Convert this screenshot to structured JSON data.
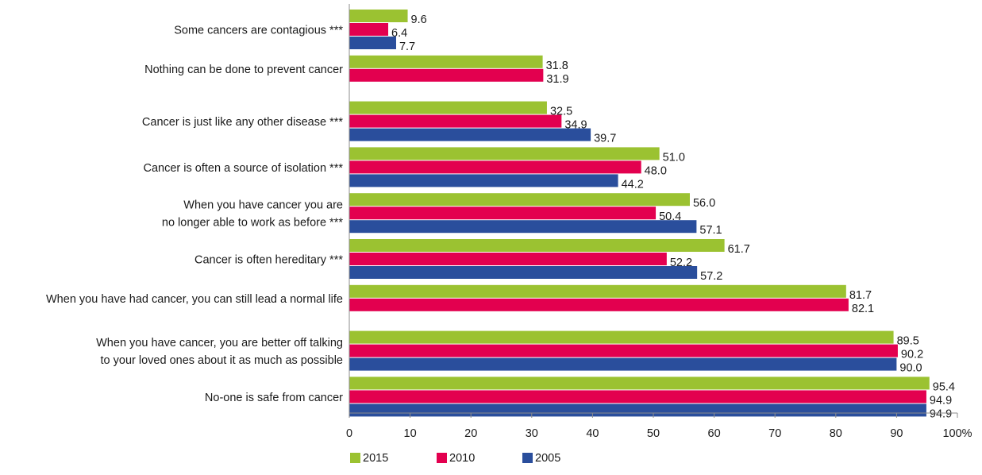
{
  "chart_data": {
    "type": "bar",
    "orientation": "horizontal",
    "title": "",
    "xlabel": "",
    "ylabel": "",
    "xlim": [
      0,
      100
    ],
    "x_ticks": [
      "0",
      "10",
      "20",
      "30",
      "40",
      "50",
      "60",
      "70",
      "80",
      "90",
      "100%"
    ],
    "grid": false,
    "legend_position": "bottom",
    "categories": [
      [
        "Some cancers are contagious ***"
      ],
      [
        "Nothing can be done to prevent cancer"
      ],
      [
        "Cancer is just like any other disease ***"
      ],
      [
        "Cancer is often a source of isolation ***"
      ],
      [
        "When you have cancer you are",
        "no longer able to work as before ***"
      ],
      [
        "Cancer is often hereditary ***"
      ],
      [
        "When you have had cancer, you can still lead a normal life"
      ],
      [
        "When you have cancer, you are better off talking",
        "to your loved ones about it as much as possible"
      ],
      [
        "No-one is safe from cancer"
      ]
    ],
    "series": [
      {
        "name": "2015",
        "color": "#9bc231",
        "values": [
          9.6,
          31.8,
          32.5,
          51.0,
          56.0,
          61.7,
          81.7,
          89.5,
          95.4
        ],
        "labels": [
          "9.6",
          "31.8",
          "32.5",
          "51.0",
          "56.0",
          "61.7",
          "81.7",
          "89.5",
          "95.4"
        ]
      },
      {
        "name": "2010",
        "color": "#e3004f",
        "values": [
          6.4,
          31.9,
          34.9,
          48.0,
          50.4,
          52.2,
          82.1,
          90.2,
          94.9
        ],
        "labels": [
          "6.4",
          "31.9",
          "34.9",
          "48.0",
          "50.4",
          "52.2",
          "82.1",
          "90.2",
          "94.9"
        ]
      },
      {
        "name": "2005",
        "color": "#2a4e9c",
        "values": [
          7.7,
          null,
          39.7,
          44.2,
          57.1,
          57.2,
          null,
          90.0,
          94.9
        ],
        "labels": [
          "7.7",
          null,
          "39.7",
          "44.2",
          "57.1",
          "57.2",
          null,
          "90.0",
          "94.9"
        ]
      }
    ]
  }
}
